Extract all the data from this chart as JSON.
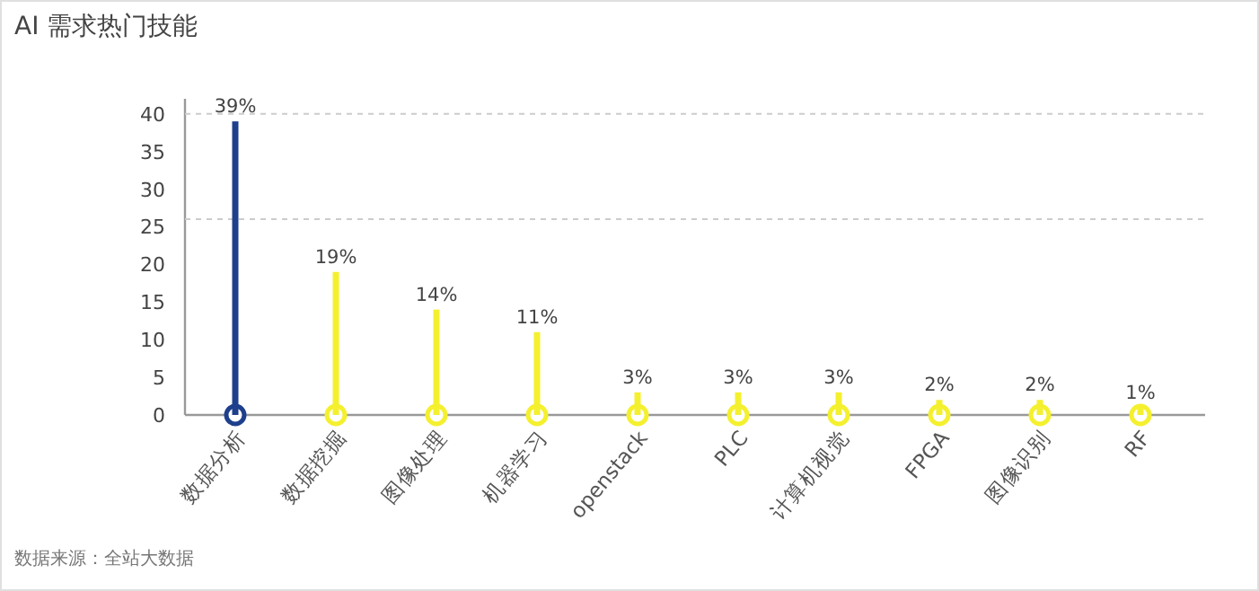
{
  "chart_data": {
    "type": "bar",
    "title": "AI 需求热门技能",
    "categories": [
      "数据分析",
      "数据挖掘",
      "图像处理",
      "机器学习",
      "openstack",
      "PLC",
      "计算机视觉",
      "FPGA",
      "图像识别",
      "RF"
    ],
    "values": [
      39,
      19,
      14,
      11,
      3,
      3,
      3,
      2,
      2,
      1
    ],
    "value_labels": [
      "39%",
      "19%",
      "14%",
      "11%",
      "3%",
      "3%",
      "3%",
      "2%",
      "2%",
      "1%"
    ],
    "colors": [
      "#1e3f8c",
      "#f4f02e",
      "#f4f02e",
      "#f4f02e",
      "#f4f02e",
      "#f4f02e",
      "#f4f02e",
      "#f4f02e",
      "#f4f02e",
      "#f4f02e"
    ],
    "ylim": [
      0,
      42
    ],
    "yticks": [
      0,
      5,
      10,
      15,
      20,
      25,
      30,
      35,
      40
    ],
    "ref_lines": [
      {
        "axis": "y",
        "value": 40,
        "line_style": "dashed",
        "color": "#cccccc"
      },
      {
        "axis": "y",
        "value": 26,
        "line_style": "dashed",
        "color": "#cccccc"
      }
    ],
    "annotations": [
      "数据来源：全站大数据"
    ]
  }
}
